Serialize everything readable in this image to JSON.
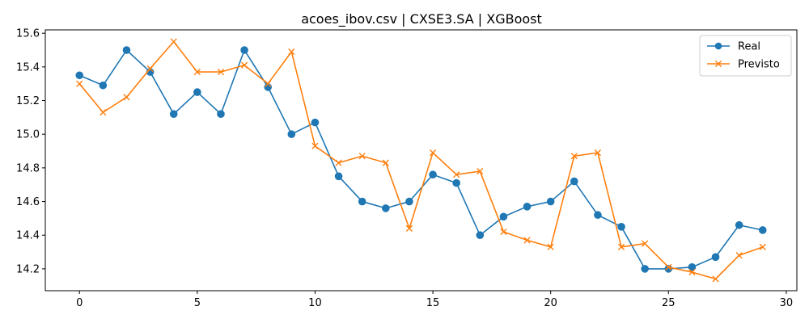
{
  "chart_data": {
    "type": "line",
    "title": "acoes_ibov.csv | CXSE3.SA | XGBoost",
    "xlabel": "",
    "ylabel": "",
    "xlim": [
      -1.45,
      30.45
    ],
    "ylim": [
      14.07,
      15.62
    ],
    "x_ticks": [
      0,
      5,
      10,
      15,
      20,
      25,
      30
    ],
    "y_ticks": [
      14.2,
      14.4,
      14.6,
      14.8,
      15.0,
      15.2,
      15.4,
      15.6
    ],
    "x_tick_labels": [
      "0",
      "5",
      "10",
      "15",
      "20",
      "25",
      "30"
    ],
    "y_tick_labels": [
      "14.2",
      "14.4",
      "14.6",
      "14.8",
      "15.0",
      "15.2",
      "15.4",
      "15.6"
    ],
    "grid": false,
    "legend_position": "top-right",
    "x": [
      0,
      1,
      2,
      3,
      4,
      5,
      6,
      7,
      8,
      9,
      10,
      11,
      12,
      13,
      14,
      15,
      16,
      17,
      18,
      19,
      20,
      21,
      22,
      23,
      24,
      25,
      26,
      27,
      28,
      29
    ],
    "series": [
      {
        "name": "Real",
        "color": "#1f77b4",
        "marker": "circle",
        "values": [
          15.35,
          15.29,
          15.5,
          15.37,
          15.12,
          15.25,
          15.12,
          15.5,
          15.28,
          15.0,
          15.07,
          14.75,
          14.6,
          14.56,
          14.6,
          14.76,
          14.71,
          14.4,
          14.51,
          14.57,
          14.6,
          14.72,
          14.52,
          14.45,
          14.2,
          14.2,
          14.21,
          14.27,
          14.46,
          14.43
        ]
      },
      {
        "name": "Previsto",
        "color": "#ff7f0e",
        "marker": "x",
        "values": [
          15.3,
          15.13,
          15.22,
          15.39,
          15.55,
          15.37,
          15.37,
          15.41,
          15.3,
          15.49,
          14.93,
          14.83,
          14.87,
          14.83,
          14.44,
          14.89,
          14.76,
          14.78,
          14.42,
          14.37,
          14.33,
          14.87,
          14.89,
          14.33,
          14.35,
          14.21,
          14.18,
          14.14,
          14.28,
          14.33
        ]
      }
    ]
  }
}
